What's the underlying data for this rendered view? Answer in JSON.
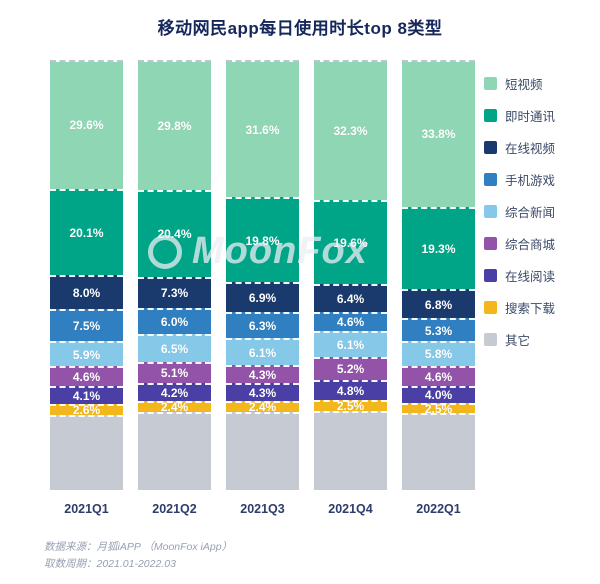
{
  "title": "移动网民app每日使用时长top 8类型",
  "watermark": "MoonFox",
  "footer": {
    "source": "数据来源：月狐iAPP （MoonFox iApp）",
    "period": "取数周期：2021.01-2022.03"
  },
  "chart_data": {
    "type": "bar",
    "stacked": true,
    "unit": "%",
    "title": "移动网民app每日使用时长top 8类型",
    "categories": [
      "2021Q1",
      "2021Q2",
      "2021Q3",
      "2021Q4",
      "2022Q1"
    ],
    "series": [
      {
        "name": "短视频",
        "color": "#8fd6b4",
        "values": [
          29.6,
          29.8,
          31.6,
          32.3,
          33.8
        ]
      },
      {
        "name": "即时通讯",
        "color": "#00a588",
        "values": [
          20.1,
          20.4,
          19.8,
          19.6,
          19.3
        ]
      },
      {
        "name": "在线视频",
        "color": "#1a3a6e",
        "values": [
          8.0,
          7.3,
          6.9,
          6.4,
          6.8
        ]
      },
      {
        "name": "手机游戏",
        "color": "#2f7fc1",
        "values": [
          7.5,
          6.0,
          6.3,
          4.6,
          5.3
        ]
      },
      {
        "name": "综合新闻",
        "color": "#85c8e8",
        "values": [
          5.9,
          6.5,
          6.1,
          6.1,
          5.8
        ]
      },
      {
        "name": "综合商城",
        "color": "#9353a8",
        "values": [
          4.6,
          5.1,
          4.3,
          5.2,
          4.6
        ]
      },
      {
        "name": "在线阅读",
        "color": "#4a3fa5",
        "values": [
          4.1,
          4.2,
          4.3,
          4.8,
          4.0
        ]
      },
      {
        "name": "搜索下载",
        "color": "#f2b71c",
        "values": [
          2.6,
          2.4,
          2.4,
          2.5,
          2.5
        ]
      },
      {
        "name": "其它",
        "color": "#c5cad3",
        "values": [
          17.6,
          18.3,
          18.3,
          18.5,
          17.9
        ],
        "show_labels": false
      }
    ],
    "legend_position": "right",
    "ylim": [
      0,
      100
    ],
    "grid": false
  }
}
